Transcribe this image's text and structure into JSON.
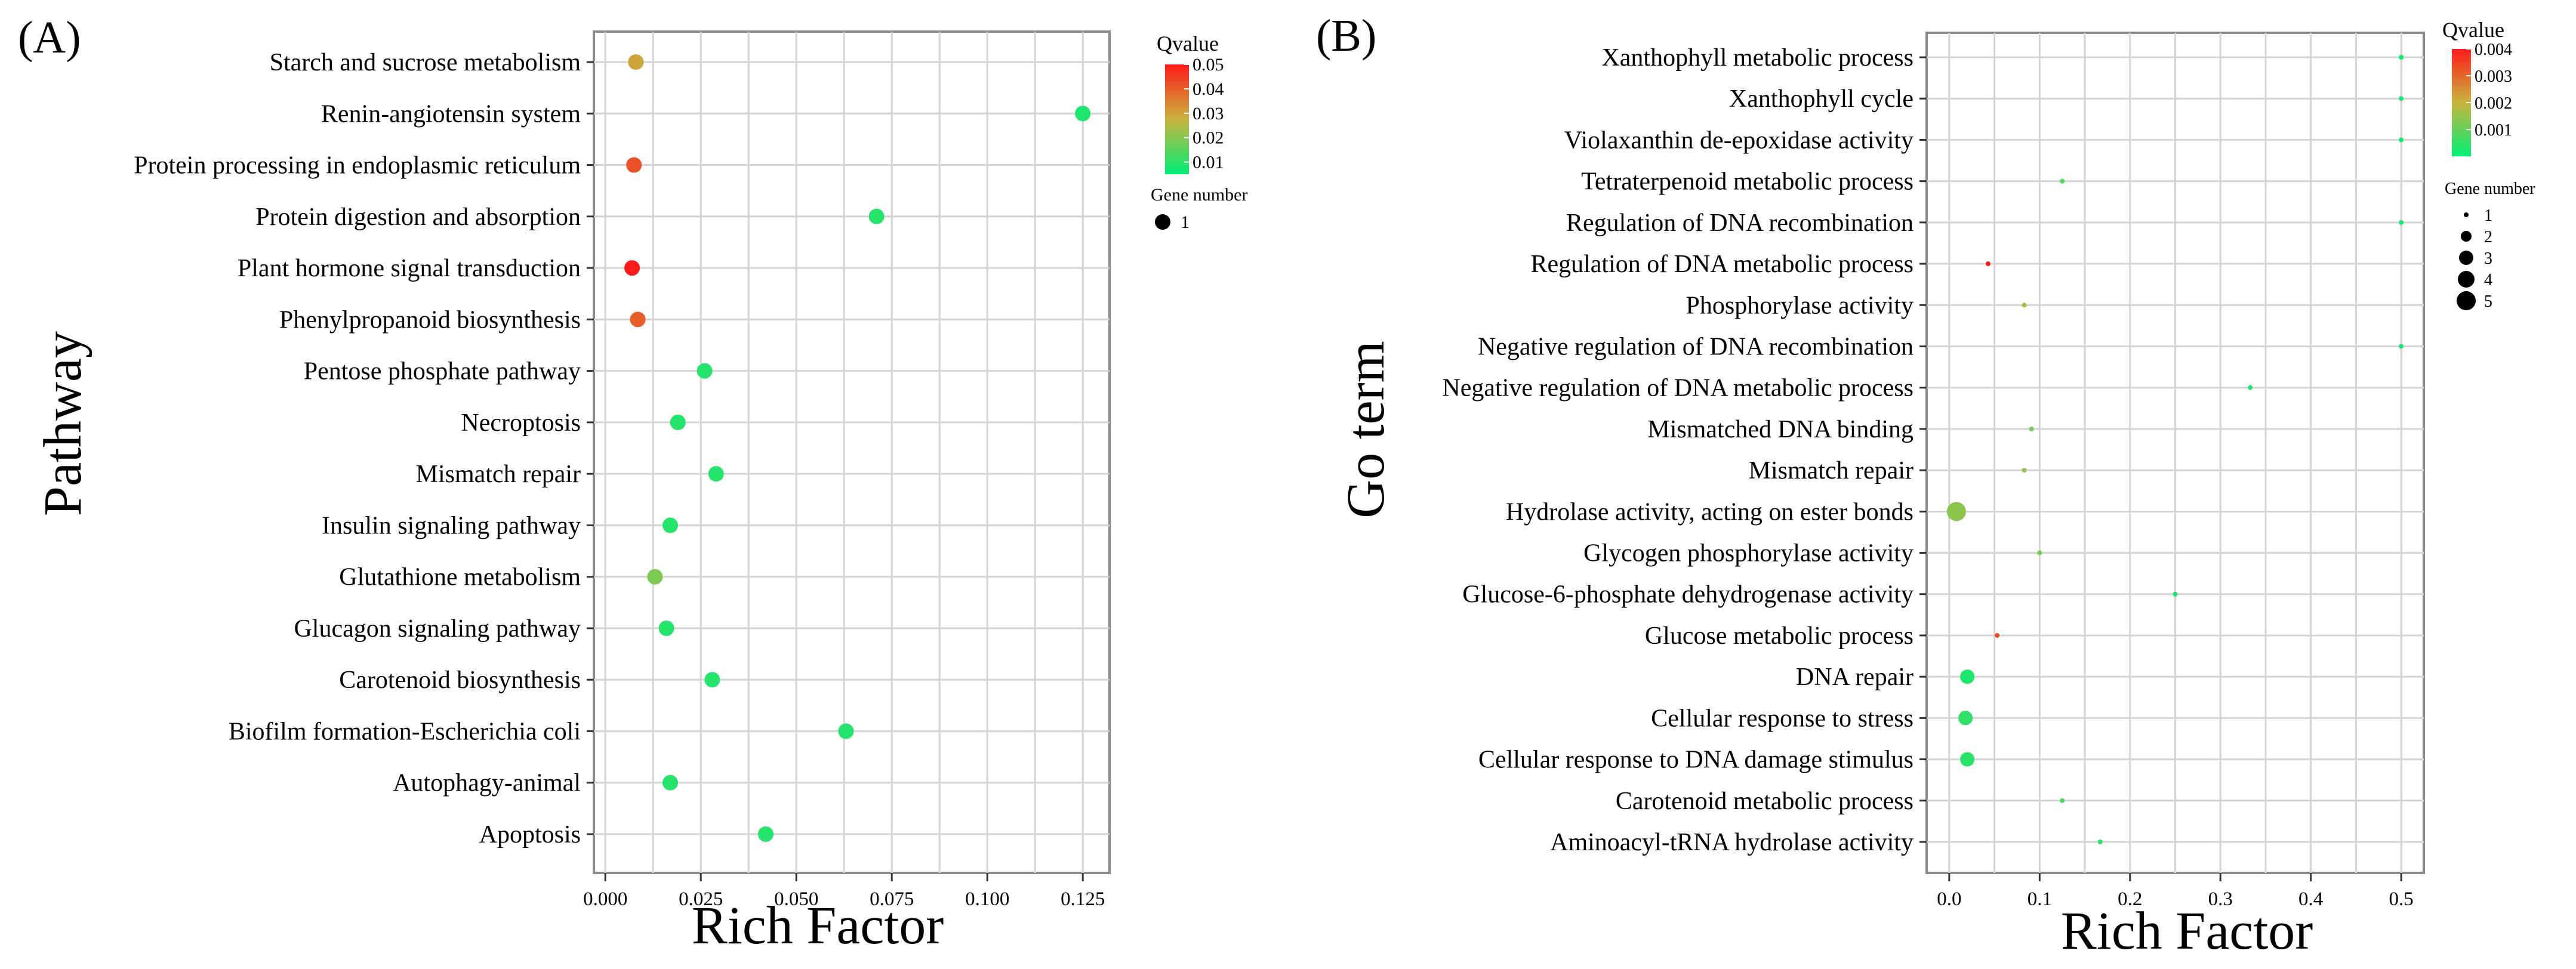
{
  "figure": {
    "panels": [
      {
        "label": "(A)"
      },
      {
        "label": "(B)"
      }
    ]
  },
  "chart_data": [
    {
      "type": "scatter",
      "panel": "(A)",
      "xlabel": "Rich Factor",
      "ylabel": "Pathway",
      "xlim": [
        -0.003,
        0.132
      ],
      "xticks": [
        0.0,
        0.025,
        0.05,
        0.075,
        0.1,
        0.125
      ],
      "xtick_labels": [
        "0.000",
        "0.025",
        "0.050",
        "0.075",
        "0.100",
        "0.125"
      ],
      "color_legend": {
        "title": "Qvalue",
        "min": 0.005,
        "max": 0.05,
        "ticks": [
          0.05,
          0.04,
          0.03,
          0.02,
          0.01
        ],
        "tick_labels": [
          "0.05",
          "0.04",
          "0.03",
          "0.02",
          "0.01"
        ],
        "low_color": "#00ee76",
        "high_color": "#ff1a1a"
      },
      "size_legend": {
        "title": "Gene number",
        "values": [
          1
        ],
        "labels": [
          "1"
        ]
      },
      "points": [
        {
          "term": "Starch and sucrose metabolism",
          "rich_factor": 0.008,
          "qvalue": 0.03,
          "gene_number": 1
        },
        {
          "term": "Renin-angiotensin system",
          "rich_factor": 0.125,
          "qvalue": 0.008,
          "gene_number": 1
        },
        {
          "term": "Protein processing in endoplasmic reticulum",
          "rich_factor": 0.0075,
          "qvalue": 0.042,
          "gene_number": 1
        },
        {
          "term": "Protein digestion and absorption",
          "rich_factor": 0.071,
          "qvalue": 0.009,
          "gene_number": 1
        },
        {
          "term": "Plant hormone signal transduction",
          "rich_factor": 0.007,
          "qvalue": 0.05,
          "gene_number": 1
        },
        {
          "term": "Phenylpropanoid biosynthesis",
          "rich_factor": 0.0085,
          "qvalue": 0.04,
          "gene_number": 1
        },
        {
          "term": "Pentose phosphate pathway",
          "rich_factor": 0.026,
          "qvalue": 0.009,
          "gene_number": 1
        },
        {
          "term": "Necroptosis",
          "rich_factor": 0.019,
          "qvalue": 0.009,
          "gene_number": 1
        },
        {
          "term": "Mismatch repair",
          "rich_factor": 0.029,
          "qvalue": 0.009,
          "gene_number": 1
        },
        {
          "term": "Insulin signaling pathway",
          "rich_factor": 0.017,
          "qvalue": 0.009,
          "gene_number": 1
        },
        {
          "term": "Glutathione metabolism",
          "rich_factor": 0.013,
          "qvalue": 0.019,
          "gene_number": 1
        },
        {
          "term": "Glucagon signaling pathway",
          "rich_factor": 0.016,
          "qvalue": 0.009,
          "gene_number": 1
        },
        {
          "term": "Carotenoid biosynthesis",
          "rich_factor": 0.028,
          "qvalue": 0.009,
          "gene_number": 1
        },
        {
          "term": "Biofilm formation-Escherichia coli",
          "rich_factor": 0.063,
          "qvalue": 0.009,
          "gene_number": 1
        },
        {
          "term": "Autophagy-animal",
          "rich_factor": 0.017,
          "qvalue": 0.009,
          "gene_number": 1
        },
        {
          "term": "Apoptosis",
          "rich_factor": 0.042,
          "qvalue": 0.009,
          "gene_number": 1
        }
      ]
    },
    {
      "type": "scatter",
      "panel": "(B)",
      "xlabel": "Rich Factor",
      "ylabel": "Go term",
      "xlim": [
        -0.025,
        0.525
      ],
      "xticks": [
        0.0,
        0.1,
        0.2,
        0.3,
        0.4,
        0.5
      ],
      "xtick_labels": [
        "0.0",
        "0.1",
        "0.2",
        "0.3",
        "0.4",
        "0.5"
      ],
      "color_legend": {
        "title": "Qvalue",
        "min": 0.0,
        "max": 0.004,
        "ticks": [
          0.004,
          0.003,
          0.002,
          0.001
        ],
        "tick_labels": [
          "0.004",
          "0.003",
          "0.002",
          "0.001"
        ],
        "low_color": "#00ee76",
        "high_color": "#ff1a1a"
      },
      "size_legend": {
        "title": "Gene number",
        "values": [
          1,
          2,
          3,
          4,
          5
        ],
        "labels": [
          "1",
          "2",
          "3",
          "4",
          "5"
        ]
      },
      "points": [
        {
          "term": "Xanthophyll metabolic process",
          "rich_factor": 0.5,
          "qvalue": 0.0002,
          "gene_number": 1
        },
        {
          "term": "Xanthophyll cycle",
          "rich_factor": 0.5,
          "qvalue": 0.0002,
          "gene_number": 1
        },
        {
          "term": "Violaxanthin de-epoxidase activity",
          "rich_factor": 0.5,
          "qvalue": 0.0002,
          "gene_number": 1
        },
        {
          "term": "Tetraterpenoid metabolic process",
          "rich_factor": 0.125,
          "qvalue": 0.0008,
          "gene_number": 1
        },
        {
          "term": "Regulation of DNA recombination",
          "rich_factor": 0.5,
          "qvalue": 0.0002,
          "gene_number": 1
        },
        {
          "term": "Regulation of DNA metabolic process",
          "rich_factor": 0.043,
          "qvalue": 0.004,
          "gene_number": 1
        },
        {
          "term": "Phosphorylase activity",
          "rich_factor": 0.083,
          "qvalue": 0.0017,
          "gene_number": 1
        },
        {
          "term": "Negative regulation of DNA recombination",
          "rich_factor": 0.5,
          "qvalue": 0.0002,
          "gene_number": 1
        },
        {
          "term": "Negative regulation of DNA metabolic process",
          "rich_factor": 0.333,
          "qvalue": 0.0002,
          "gene_number": 1
        },
        {
          "term": "Mismatched DNA binding",
          "rich_factor": 0.091,
          "qvalue": 0.0012,
          "gene_number": 1
        },
        {
          "term": "Mismatch repair",
          "rich_factor": 0.083,
          "qvalue": 0.0015,
          "gene_number": 1
        },
        {
          "term": "Hydrolase activity, acting on ester bonds",
          "rich_factor": 0.008,
          "qvalue": 0.0014,
          "gene_number": 5
        },
        {
          "term": "Glycogen phosphorylase activity",
          "rich_factor": 0.1,
          "qvalue": 0.0012,
          "gene_number": 1
        },
        {
          "term": "Glucose-6-phosphate dehydrogenase activity",
          "rich_factor": 0.25,
          "qvalue": 0.0003,
          "gene_number": 1
        },
        {
          "term": "Glucose metabolic process",
          "rich_factor": 0.053,
          "qvalue": 0.0034,
          "gene_number": 1
        },
        {
          "term": "DNA repair",
          "rich_factor": 0.02,
          "qvalue": 0.0003,
          "gene_number": 3
        },
        {
          "term": "Cellular response to stress",
          "rich_factor": 0.018,
          "qvalue": 0.0005,
          "gene_number": 3
        },
        {
          "term": "Cellular response to DNA damage stimulus",
          "rich_factor": 0.02,
          "qvalue": 0.0004,
          "gene_number": 3
        },
        {
          "term": "Carotenoid metabolic process",
          "rich_factor": 0.125,
          "qvalue": 0.0008,
          "gene_number": 1
        },
        {
          "term": "Aminoacyl-tRNA hydrolase activity",
          "rich_factor": 0.167,
          "qvalue": 0.0004,
          "gene_number": 1
        }
      ]
    }
  ]
}
